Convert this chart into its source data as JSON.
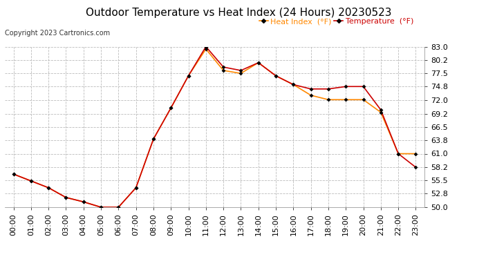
{
  "title": "Outdoor Temperature vs Heat Index (24 Hours) 20230523",
  "copyright": "Copyright 2023 Cartronics.com",
  "legend_heat": "Heat Index  (°F)",
  "legend_temp": "Temperature  (°F)",
  "hours": [
    "00:00",
    "01:00",
    "02:00",
    "03:00",
    "04:00",
    "05:00",
    "06:00",
    "07:00",
    "08:00",
    "09:00",
    "10:00",
    "11:00",
    "12:00",
    "13:00",
    "14:00",
    "15:00",
    "16:00",
    "17:00",
    "18:00",
    "19:00",
    "20:00",
    "21:00",
    "22:00",
    "23:00"
  ],
  "temperature": [
    56.8,
    55.4,
    54.0,
    52.0,
    51.1,
    50.0,
    50.0,
    54.0,
    64.0,
    70.4,
    77.0,
    83.0,
    78.8,
    78.1,
    79.7,
    77.0,
    75.2,
    74.3,
    74.3,
    74.8,
    74.8,
    70.0,
    61.0,
    58.2
  ],
  "heat_index": [
    56.8,
    55.4,
    54.0,
    52.0,
    51.1,
    50.0,
    50.0,
    54.0,
    64.0,
    70.4,
    77.0,
    82.5,
    78.1,
    77.5,
    79.7,
    77.0,
    75.2,
    73.0,
    72.1,
    72.1,
    72.1,
    69.5,
    61.0,
    61.0
  ],
  "temp_color": "#cc0000",
  "heat_color": "#ff8800",
  "marker_color": "#000000",
  "ylim": [
    50.0,
    83.0
  ],
  "yticks": [
    50.0,
    52.8,
    55.5,
    58.2,
    61.0,
    63.8,
    66.5,
    69.2,
    72.0,
    74.8,
    77.5,
    80.2,
    83.0
  ],
  "bg_color": "#ffffff",
  "grid_color": "#bbbbbb",
  "title_fontsize": 11,
  "tick_fontsize": 8,
  "copyright_fontsize": 7,
  "legend_fontsize": 8
}
